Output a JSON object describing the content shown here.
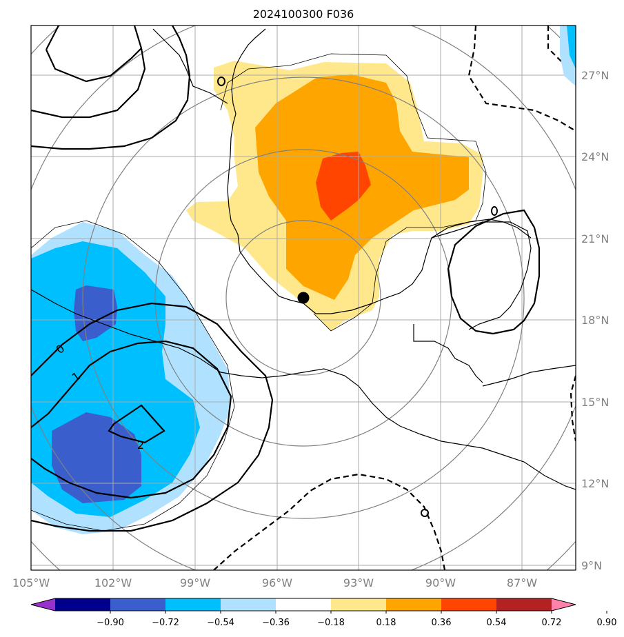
{
  "title": "2024100300 F036",
  "map": {
    "lon_range": [
      -105,
      -84.5
    ],
    "lat_range": [
      8.5,
      28.5
    ],
    "lon_ticks": [
      "105°W",
      "102°W",
      "99°W",
      "96°W",
      "93°W",
      "90°W",
      "87°W"
    ],
    "lat_ticks": [
      "9°N",
      "12°N",
      "15°N",
      "18°N",
      "21°N",
      "24°N",
      "27°N"
    ],
    "grid": true,
    "center_marker": {
      "lon": -95.0,
      "lat": 18.8
    },
    "range_rings": 5
  },
  "contour_labels": [
    {
      "text": "0",
      "style": "solid"
    },
    {
      "text": "1",
      "style": "solid"
    },
    {
      "text": "2",
      "style": "solid"
    },
    {
      "text": "0",
      "style": "solid"
    },
    {
      "text": "0",
      "style": "dashed"
    },
    {
      "text": "0",
      "style": "solid"
    }
  ],
  "colorbar": {
    "tick_labels": [
      "−0.90",
      "−0.72",
      "−0.54",
      "−0.36",
      "−0.18",
      "0.18",
      "0.36",
      "0.54",
      "0.72",
      "0.90"
    ],
    "colors": [
      "#9932cc",
      "#00008b",
      "#3a5fcd",
      "#00bfff",
      "#b0e2ff",
      "#ffffff",
      "#ffe88c",
      "#ffa500",
      "#ff4500",
      "#b22222",
      "#ff82ab"
    ]
  },
  "fill_colors": {
    "neg_light": "#b0e2ff",
    "neg_mid": "#00bfff",
    "neg_dark": "#3a5fcd",
    "pos_light": "#ffe88c",
    "pos_mid": "#ffa500",
    "pos_dark": "#ff4500"
  }
}
